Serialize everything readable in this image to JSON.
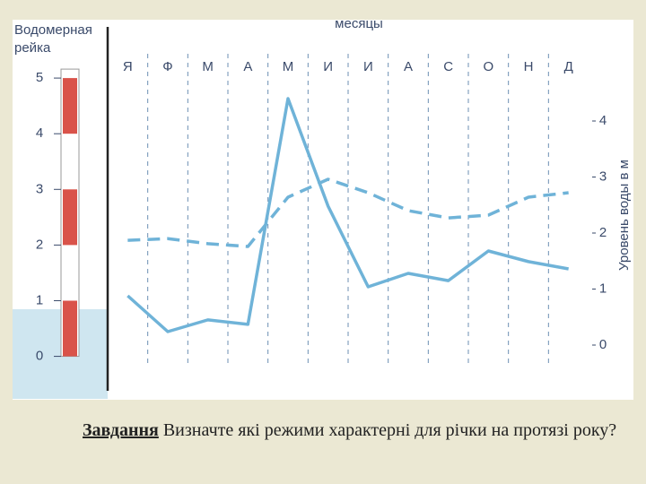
{
  "chart_data": {
    "type": "line",
    "ylabel": "Водомерная рейка",
    "xlabel": "месяцы",
    "y2label": "Уровень воды в м",
    "categories": [
      "Я",
      "Ф",
      "М",
      "А",
      "М",
      "И",
      "И",
      "А",
      "С",
      "О",
      "Н",
      "Д"
    ],
    "series": [
      {
        "color": "#6fb3d8",
        "style": "solid",
        "axis": "y2",
        "values": [
          0.88,
          0.24,
          0.45,
          0.37,
          4.4,
          2.48,
          1.04,
          1.28,
          1.15,
          1.68,
          1.49,
          1.36
        ]
      },
      {
        "color": "#6fb3d8",
        "style": "dashed",
        "axis": "y2",
        "values": [
          1.87,
          1.9,
          1.81,
          1.76,
          2.64,
          2.96,
          2.72,
          2.4,
          2.27,
          2.32,
          2.64,
          2.72
        ]
      }
    ],
    "ylim": [
      -0.2,
      6
    ],
    "yticks": [
      0,
      1,
      2,
      3,
      4,
      5
    ],
    "y2lim": [
      -0.4,
      5.76
    ],
    "y2ticks": [
      0,
      1,
      2,
      3,
      4
    ]
  },
  "task": {
    "label": "Завдання",
    "text": "Визначте які режими характерні для річки на протязі року?"
  }
}
